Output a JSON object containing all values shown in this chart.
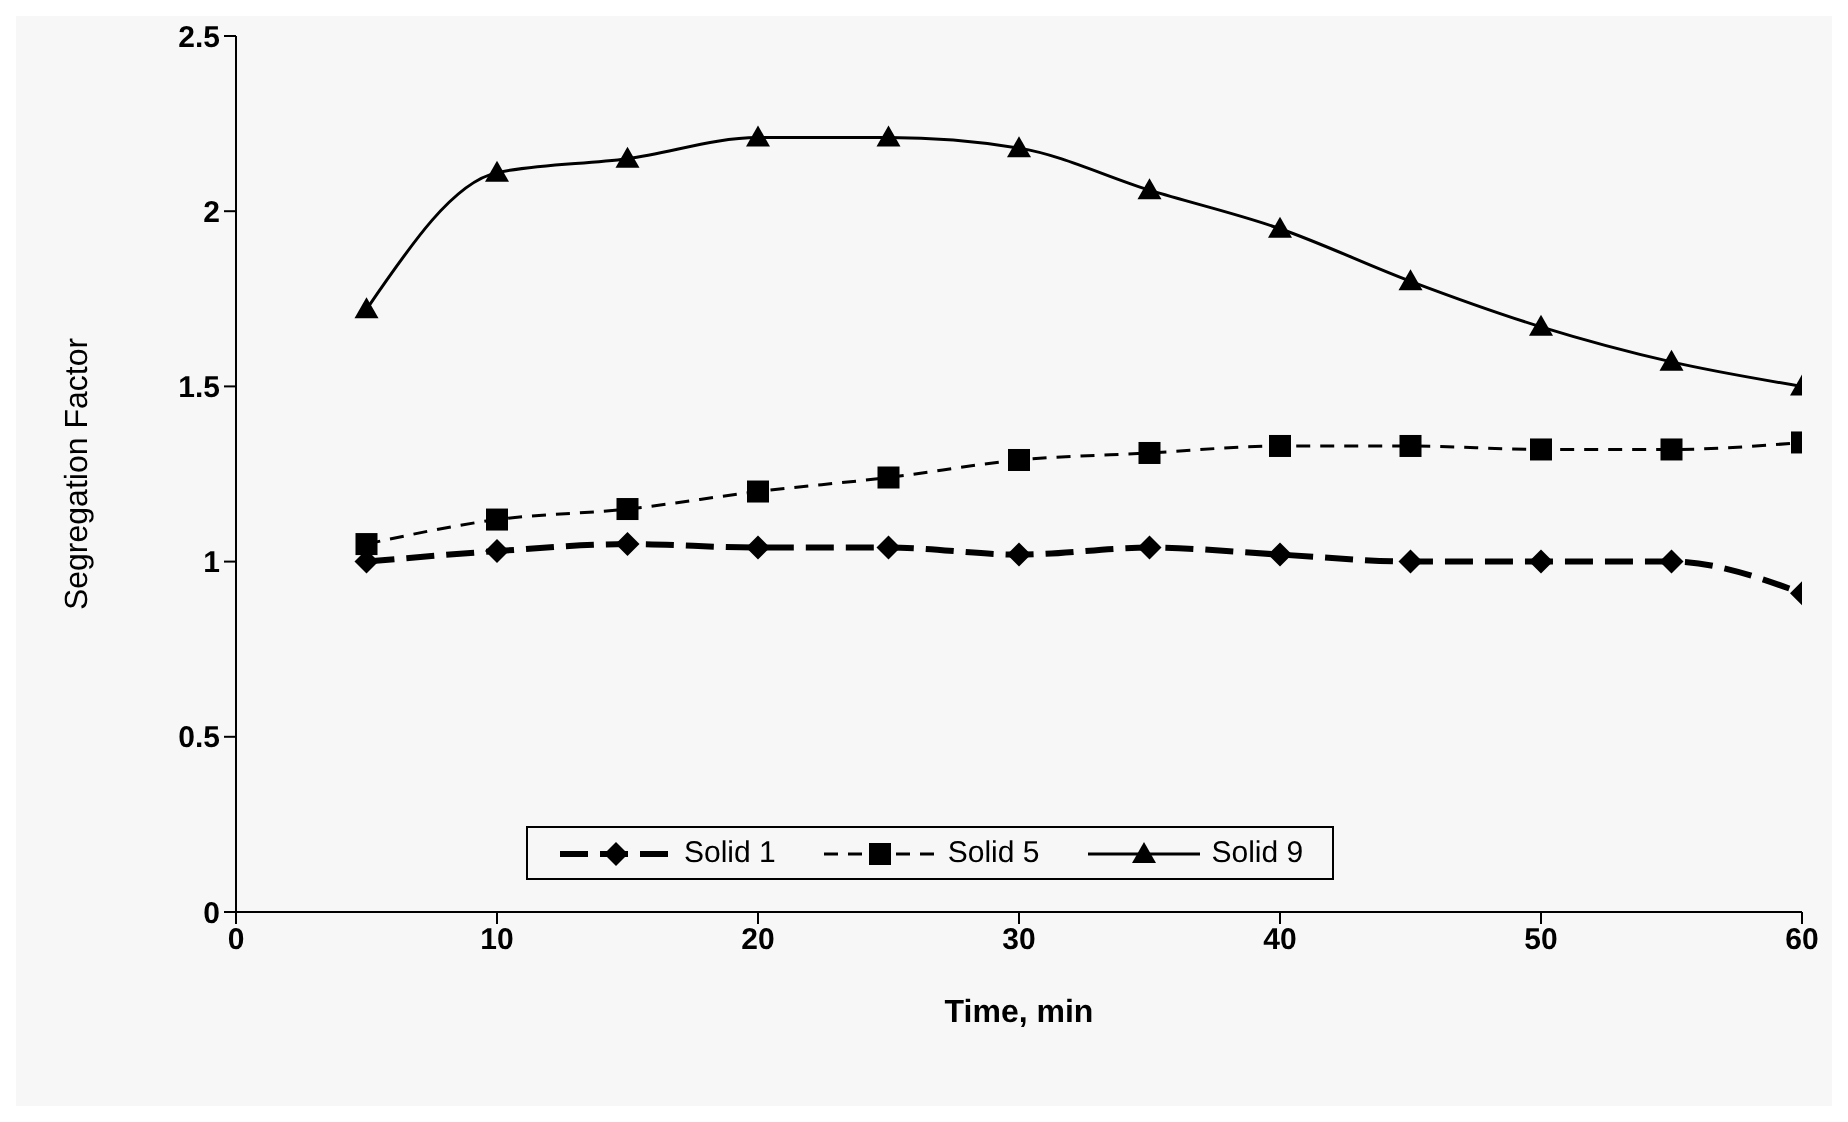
{
  "chart_data": {
    "type": "line",
    "xlabel": "Time, min",
    "ylabel": "Segregation Factor",
    "x": [
      5,
      10,
      15,
      20,
      25,
      30,
      35,
      40,
      45,
      50,
      55,
      60
    ],
    "xlim": [
      0,
      60
    ],
    "xticks": [
      0,
      10,
      20,
      30,
      40,
      50,
      60
    ],
    "ylim": [
      0,
      2.5
    ],
    "yticks": [
      0,
      0.5,
      1,
      1.5,
      2,
      2.5
    ],
    "grid": false,
    "legend": "bottom",
    "series": [
      {
        "name": "Solid 1",
        "color": "#000000",
        "marker": "diamond",
        "line_style": "dashed",
        "values": [
          1.0,
          1.03,
          1.05,
          1.04,
          1.04,
          1.02,
          1.04,
          1.02,
          1.0,
          1.0,
          1.0,
          0.91
        ]
      },
      {
        "name": "Solid 5",
        "color": "#000000",
        "marker": "square",
        "line_style": "dashed",
        "values": [
          1.05,
          1.12,
          1.15,
          1.2,
          1.24,
          1.29,
          1.31,
          1.33,
          1.33,
          1.32,
          1.32,
          1.34
        ]
      },
      {
        "name": "Solid 9",
        "color": "#000000",
        "marker": "triangle",
        "line_style": "solid",
        "values": [
          1.72,
          2.11,
          2.15,
          2.21,
          2.21,
          2.18,
          2.06,
          1.95,
          1.8,
          1.67,
          1.57,
          1.5
        ]
      }
    ]
  }
}
